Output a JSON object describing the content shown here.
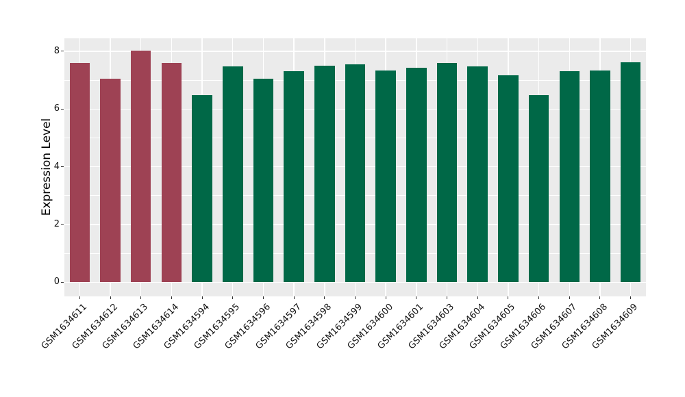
{
  "chart_data": {
    "type": "bar",
    "title": "",
    "xlabel": "",
    "ylabel": "Expression Level",
    "categories": [
      "GSM1634611",
      "GSM1634612",
      "GSM1634613",
      "GSM1634614",
      "GSM1634594",
      "GSM1634595",
      "GSM1634596",
      "GSM1634597",
      "GSM1634598",
      "GSM1634599",
      "GSM1634600",
      "GSM1634601",
      "GSM1634603",
      "GSM1634604",
      "GSM1634605",
      "GSM1634606",
      "GSM1634607",
      "GSM1634608",
      "GSM1634609"
    ],
    "values": [
      7.59,
      7.05,
      8.03,
      7.59,
      6.49,
      7.48,
      7.05,
      7.31,
      7.5,
      7.54,
      7.34,
      7.42,
      7.6,
      7.47,
      7.17,
      6.49,
      7.31,
      7.34,
      7.61
    ],
    "bar_colors": [
      "#9E4254",
      "#9E4254",
      "#9E4254",
      "#9E4254",
      "#006847",
      "#006847",
      "#006847",
      "#006847",
      "#006847",
      "#006847",
      "#006847",
      "#006847",
      "#006847",
      "#006847",
      "#006847",
      "#006847",
      "#006847",
      "#006847",
      "#006847"
    ],
    "group_palette": {
      "highlighted_group_color": "#9E4254",
      "default_group_color": "#006847"
    },
    "yticks": [
      0,
      2,
      4,
      6,
      8
    ],
    "yticks_minor": [
      1,
      3,
      5,
      7
    ],
    "ylim": [
      0,
      8
    ],
    "ypanel_range": [
      -0.49,
      8.45
    ],
    "grid": true,
    "legend": false,
    "panel_bg": "#EBEBEB",
    "grid_color": "#FFFFFF",
    "figure_bg": "#FFFFFF",
    "tick_color": "#333333",
    "text_color": "#111111"
  }
}
